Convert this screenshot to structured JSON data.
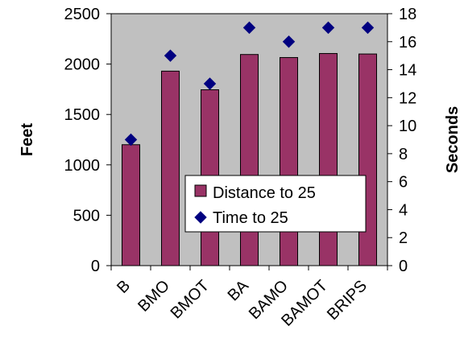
{
  "chart_data": {
    "type": "bar",
    "categories": [
      "B",
      "BMO",
      "BMOT",
      "BA",
      "BAMO",
      "BAMOT",
      "BRIPS"
    ],
    "series": [
      {
        "name": "Distance to 25",
        "type": "bar",
        "axis": "left",
        "values": [
          1200,
          1930,
          1745,
          2095,
          2065,
          2105,
          2100
        ],
        "color": "#993366"
      },
      {
        "name": "Time to 25",
        "type": "scatter",
        "marker": "diamond",
        "axis": "right",
        "values": [
          9,
          15,
          13,
          17,
          16,
          17,
          17
        ],
        "color": "#000080"
      }
    ],
    "ylabel_left": "Feet",
    "ylabel_right": "Seconds",
    "ylim_left": [
      0,
      2500
    ],
    "yticks_left": [
      0,
      500,
      1000,
      1500,
      2000,
      2500
    ],
    "ylim_right": [
      0,
      18
    ],
    "yticks_right": [
      0,
      2,
      4,
      6,
      8,
      10,
      12,
      14,
      16,
      18
    ],
    "grid": false,
    "plot_background": "#c0c0c0",
    "legend_position": "center-right, inside plot"
  }
}
